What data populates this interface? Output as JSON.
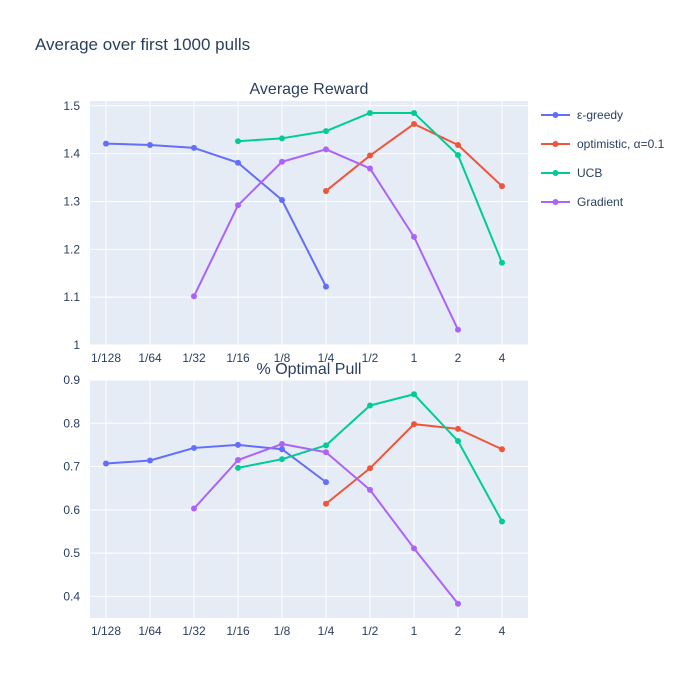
{
  "chart_data": {
    "type": "line",
    "title": "Average over first 1000 pulls",
    "categories": [
      "1/128",
      "1/64",
      "1/32",
      "1/16",
      "1/8",
      "1/4",
      "1/2",
      "1",
      "2",
      "4"
    ],
    "legend_position": "top-right",
    "series": [
      {
        "name": "ε-greedy",
        "color": "#636efa"
      },
      {
        "name": "optimistic, α=0.1",
        "color": "#ef553b"
      },
      {
        "name": "UCB",
        "color": "#00cc96"
      },
      {
        "name": "Gradient",
        "color": "#ab63fa"
      }
    ],
    "subplots": [
      {
        "title": "Average Reward",
        "ylim": [
          1.0,
          1.51
        ],
        "yticks": [
          1,
          1.1,
          1.2,
          1.3,
          1.4,
          1.5
        ],
        "grid": true,
        "values": [
          [
            1.421,
            1.418,
            1.412,
            1.381,
            1.303,
            1.122,
            null,
            null,
            null,
            null
          ],
          [
            null,
            null,
            null,
            null,
            null,
            1.322,
            1.396,
            1.462,
            1.418,
            1.332
          ],
          [
            null,
            null,
            null,
            1.426,
            1.432,
            1.447,
            1.485,
            1.485,
            1.397,
            1.172
          ],
          [
            null,
            null,
            1.102,
            1.292,
            1.383,
            1.409,
            1.369,
            1.226,
            1.032,
            null
          ]
        ]
      },
      {
        "title": "% Optimal Pull",
        "ylim": [
          0.35,
          0.9
        ],
        "yticks": [
          0.4,
          0.5,
          0.6,
          0.7,
          0.8,
          0.9
        ],
        "grid": true,
        "values": [
          [
            0.707,
            0.714,
            0.743,
            0.75,
            0.74,
            0.664,
            null,
            null,
            null,
            null
          ],
          [
            null,
            null,
            null,
            null,
            null,
            0.614,
            0.696,
            0.798,
            0.787,
            0.74
          ],
          [
            null,
            null,
            null,
            0.697,
            0.717,
            0.749,
            0.841,
            0.867,
            0.759,
            0.573
          ],
          [
            null,
            null,
            0.603,
            0.715,
            0.752,
            0.733,
            0.646,
            0.511,
            0.383,
            null
          ]
        ]
      }
    ]
  }
}
